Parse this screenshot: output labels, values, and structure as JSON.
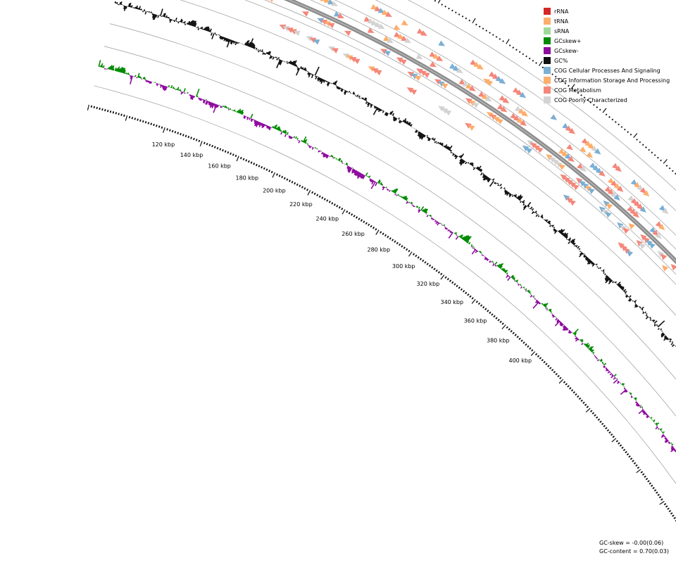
{
  "legend": [
    {
      "label": "rRNA",
      "color": "#d62728"
    },
    {
      "label": "tRNA",
      "color": "#fdae6b"
    },
    {
      "label": "sRNA",
      "color": "#a1d99b"
    },
    {
      "label": "GCskew+",
      "color": "#008a00"
    },
    {
      "label": "GCskew-",
      "color": "#8e0c9e"
    },
    {
      "label": "GC%",
      "color": "#111111"
    },
    {
      "label": "COG Cellular Processes And Signaling",
      "color": "#7bafd4"
    },
    {
      "label": "COG Information Storage And Processing",
      "color": "#fdae6b"
    },
    {
      "label": "COG Metabolism",
      "color": "#f4877a"
    },
    {
      "label": "COG Poorly Characterized",
      "color": "#d3d3d3"
    }
  ],
  "scale_labels": [
    "120 kbp",
    "140 kbp",
    "160 kbp",
    "180 kbp",
    "200 kbp",
    "220 kbp",
    "240 kbp",
    "260 kbp",
    "280 kbp",
    "300 kbp",
    "320 kbp",
    "340 kbp",
    "360 kbp",
    "380 kbp",
    "400 kbp"
  ],
  "stats": {
    "gc_skew": "GC-skew = -0.00(0.06)",
    "gc_content": "GC-content = 0.70(0.03)"
  }
}
